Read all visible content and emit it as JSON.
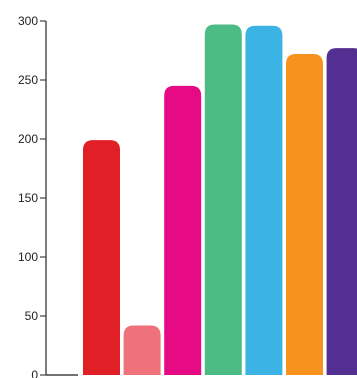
{
  "chart_data": {
    "type": "bar",
    "title": "",
    "xlabel": "",
    "ylabel": "",
    "ylim": [
      0,
      300
    ],
    "yticks": [
      0,
      50,
      100,
      150,
      200,
      250,
      300
    ],
    "grid": false,
    "bars": [
      {
        "value": 199,
        "color": "#e01f26"
      },
      {
        "value": 42,
        "color": "#ef727b"
      },
      {
        "value": 245,
        "color": "#e60b84"
      },
      {
        "value": 297,
        "color": "#4dbb84"
      },
      {
        "value": 296,
        "color": "#3bb3e5"
      },
      {
        "value": 272,
        "color": "#f7921e"
      },
      {
        "value": 277,
        "color": "#522f90"
      }
    ],
    "axis_color": "#444444"
  }
}
